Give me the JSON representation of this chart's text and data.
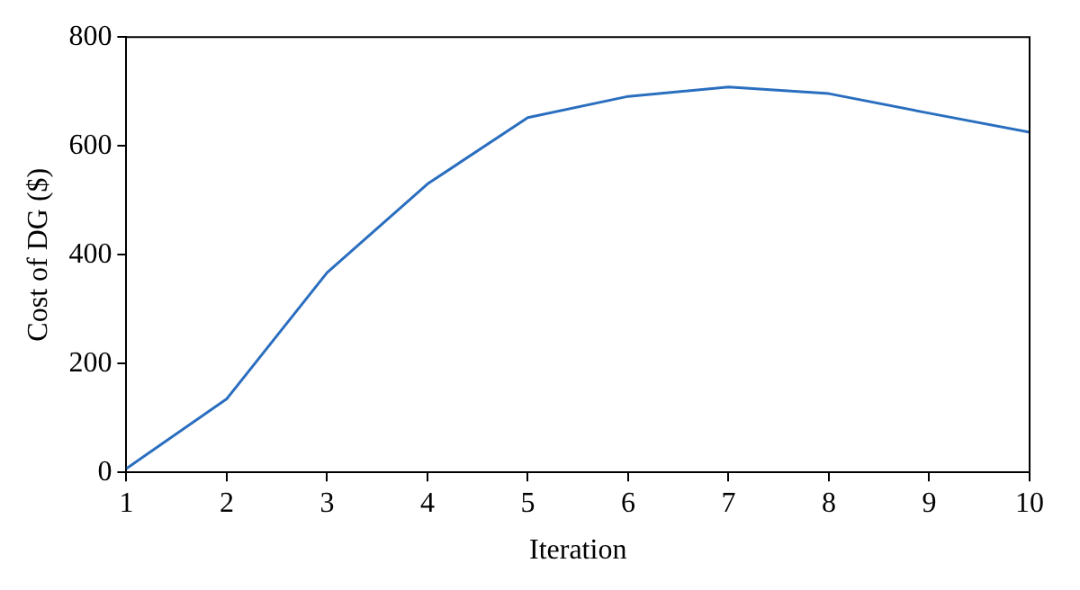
{
  "chart_data": {
    "type": "line",
    "xlabel": "Iteration",
    "ylabel": "Cost of DG ($)",
    "x": [
      1,
      2,
      3,
      4,
      5,
      6,
      7,
      8,
      9,
      10
    ],
    "series": [
      {
        "color": "#2a6ebf",
        "values": [
          7,
          135,
          367,
          530,
          652,
          691,
          708,
          696,
          660,
          625
        ]
      }
    ],
    "xlim": [
      1,
      10
    ],
    "xticks": [
      1,
      2,
      3,
      4,
      5,
      6,
      7,
      8,
      9,
      10
    ],
    "ylim": [
      0,
      800
    ],
    "yticks": [
      0,
      200,
      400,
      600,
      800
    ],
    "grid": false,
    "legend": false,
    "marker": "none",
    "line_style": "solid"
  }
}
